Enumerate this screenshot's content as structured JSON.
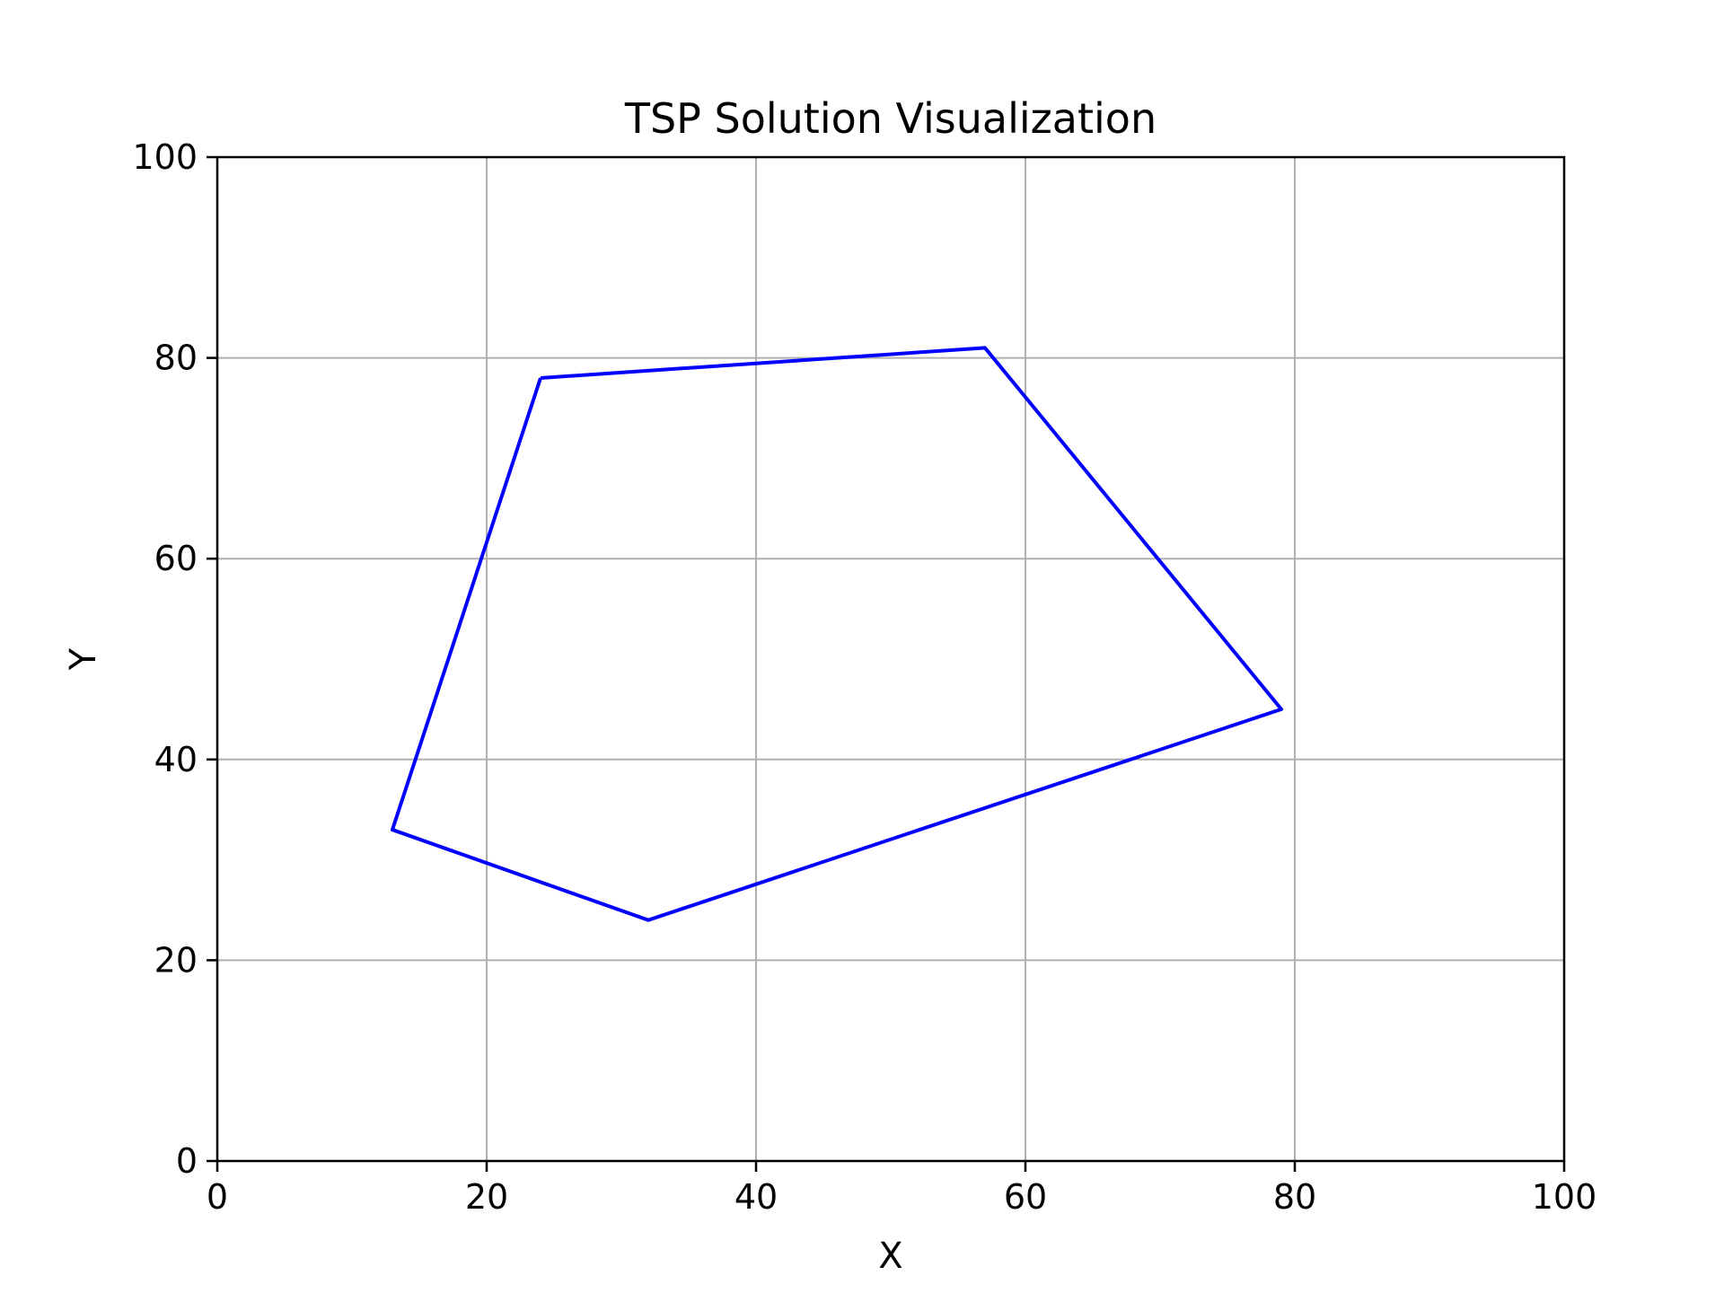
{
  "chart_data": {
    "type": "line",
    "title": "TSP Solution Visualization",
    "xlabel": "X",
    "ylabel": "Y",
    "xlim": [
      0,
      100
    ],
    "ylim": [
      0,
      100
    ],
    "xticks": [
      0,
      20,
      40,
      60,
      80,
      100
    ],
    "yticks": [
      0,
      20,
      40,
      60,
      80,
      100
    ],
    "grid": true,
    "series": [
      {
        "color": "#0000ff",
        "closed": true,
        "points": [
          {
            "x": 24,
            "y": 78
          },
          {
            "x": 57,
            "y": 81
          },
          {
            "x": 79,
            "y": 45
          },
          {
            "x": 32,
            "y": 24
          },
          {
            "x": 13,
            "y": 33
          },
          {
            "x": 24,
            "y": 78
          }
        ]
      }
    ],
    "grid_color": "#b0b0b0",
    "axis_color": "#000000"
  }
}
